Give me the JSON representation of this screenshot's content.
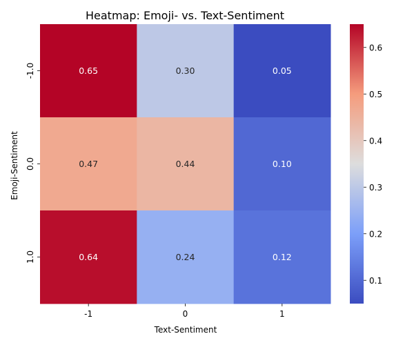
{
  "chart_data": {
    "type": "heatmap",
    "title": "Heatmap: Emoji- vs. Text-Sentiment",
    "xlabel": "Text-Sentiment",
    "ylabel": "Emoji-Sentiment",
    "x_categories": [
      "-1",
      "0",
      "1"
    ],
    "y_categories": [
      "-1.0",
      "0.0",
      "1.0"
    ],
    "values": [
      [
        0.65,
        0.3,
        0.05
      ],
      [
        0.47,
        0.44,
        0.1
      ],
      [
        0.64,
        0.24,
        0.12
      ]
    ],
    "value_labels": [
      [
        "0.65",
        "0.30",
        "0.05"
      ],
      [
        "0.47",
        "0.44",
        "0.10"
      ],
      [
        "0.64",
        "0.24",
        "0.12"
      ]
    ],
    "colormap": "coolwarm",
    "color_range": [
      0.05,
      0.65
    ],
    "colorbar": {
      "ticks": [
        0.1,
        0.2,
        0.3,
        0.4,
        0.5,
        0.6
      ],
      "tick_labels": [
        "0.1",
        "0.2",
        "0.3",
        "0.4",
        "0.5",
        "0.6"
      ]
    }
  }
}
